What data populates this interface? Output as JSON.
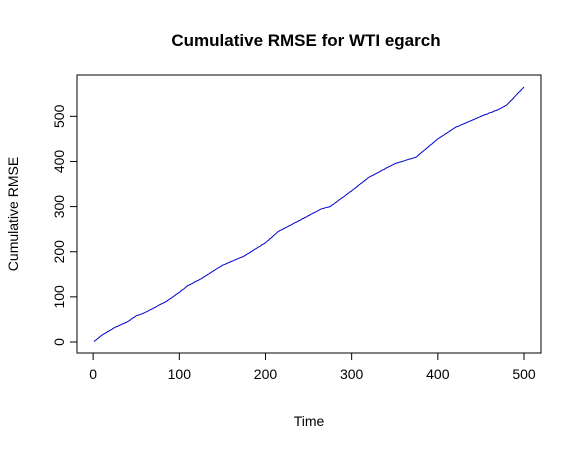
{
  "chart_data": {
    "type": "line",
    "title": "Cumulative RMSE for WTI egarch",
    "xlabel": "Time",
    "ylabel": "Cumulative RMSE",
    "xlim": [
      1,
      500
    ],
    "ylim": [
      0,
      565
    ],
    "xticks": [
      0,
      100,
      200,
      300,
      400,
      500
    ],
    "yticks": [
      0,
      100,
      200,
      300,
      400,
      500
    ],
    "grid": false,
    "legend": "none",
    "series": [
      {
        "color": "#0000cc",
        "x": [
          1,
          10,
          25,
          40,
          50,
          60,
          75,
          85,
          100,
          110,
          125,
          150,
          175,
          200,
          215,
          230,
          250,
          265,
          275,
          300,
          320,
          350,
          375,
          400,
          420,
          450,
          470,
          480,
          490,
          500
        ],
        "y": [
          1,
          15,
          32,
          45,
          58,
          65,
          80,
          90,
          110,
          125,
          140,
          170,
          190,
          220,
          245,
          260,
          280,
          295,
          300,
          335,
          365,
          395,
          410,
          450,
          475,
          500,
          515,
          525,
          545,
          565
        ]
      }
    ]
  }
}
